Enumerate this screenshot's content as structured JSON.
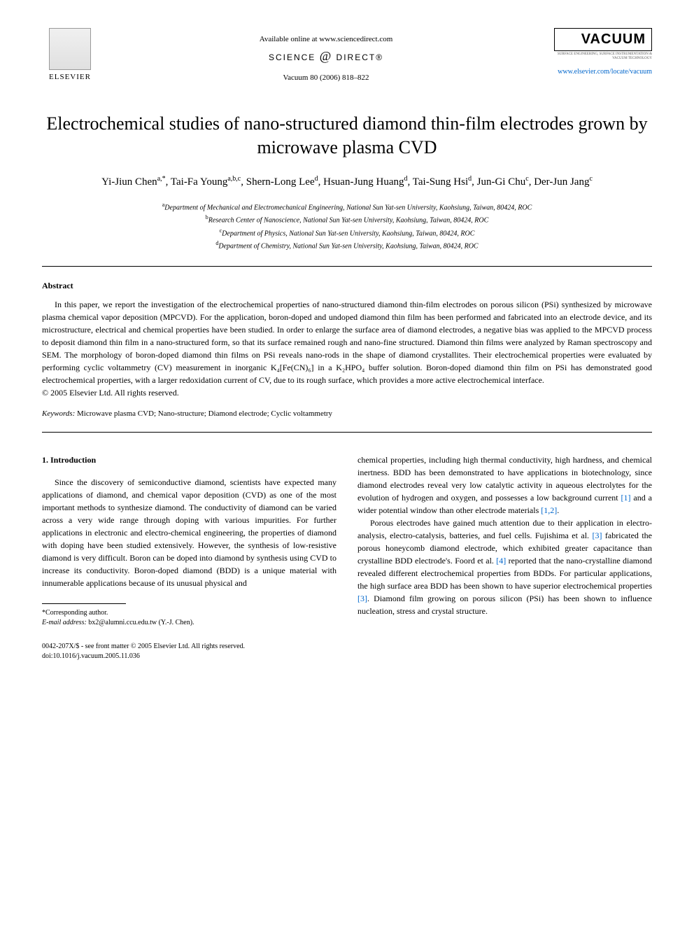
{
  "header": {
    "publisher": "ELSEVIER",
    "available_text": "Available online at www.sciencedirect.com",
    "science_direct": "SCIENCE",
    "science_direct2": "DIRECT®",
    "citation": "Vacuum 80 (2006) 818–822",
    "journal_name": "VACUUM",
    "journal_sub": "SURFACE ENGINEERING, SURFACE INSTRUMENTATION & VACUUM TECHNOLOGY",
    "journal_link": "www.elsevier.com/locate/vacuum"
  },
  "title": "Electrochemical studies of nano-structured diamond thin-film electrodes grown by microwave plasma CVD",
  "authors": [
    {
      "name": "Yi-Jiun Chen",
      "aff": "a,*"
    },
    {
      "name": "Tai-Fa Young",
      "aff": "a,b,c"
    },
    {
      "name": "Shern-Long Lee",
      "aff": "d"
    },
    {
      "name": "Hsuan-Jung Huang",
      "aff": "d"
    },
    {
      "name": "Tai-Sung Hsi",
      "aff": "d"
    },
    {
      "name": "Jun-Gi Chu",
      "aff": "c"
    },
    {
      "name": "Der-Jun Jang",
      "aff": "c"
    }
  ],
  "affiliations": [
    {
      "key": "a",
      "text": "Department of Mechanical and Electromechanical Engineering, National Sun Yat-sen University, Kaohsiung, Taiwan, 80424, ROC"
    },
    {
      "key": "b",
      "text": "Research Center of Nanoscience, National Sun Yat-sen University, Kaohsiung, Taiwan, 80424, ROC"
    },
    {
      "key": "c",
      "text": "Department of Physics, National Sun Yat-sen University, Kaohsiung, Taiwan, 80424, ROC"
    },
    {
      "key": "d",
      "text": "Department of Chemistry, National Sun Yat-sen University, Kaohsiung, Taiwan, 80424, ROC"
    }
  ],
  "abstract": {
    "heading": "Abstract",
    "text": "In this paper, we report the investigation of the electrochemical properties of nano-structured diamond thin-film electrodes on porous silicon (PSi) synthesized by microwave plasma chemical vapor deposition (MPCVD). For the application, boron-doped and undoped diamond thin film has been performed and fabricated into an electrode device, and its microstructure, electrical and chemical properties have been studied. In order to enlarge the surface area of diamond electrodes, a negative bias was applied to the MPCVD process to deposit diamond thin film in a nano-structured form, so that its surface remained rough and nano-fine structured. Diamond thin films were analyzed by Raman spectroscopy and SEM. The morphology of boron-doped diamond thin films on PSi reveals nano-rods in the shape of diamond crystallites. Their electrochemical properties were evaluated by performing cyclic voltammetry (CV) measurement in inorganic K₄[Fe(CN)₆] in a K₂HPO₄ buffer solution. Boron-doped diamond thin film on PSi has demonstrated good electrochemical properties, with a larger redoxidation current of CV, due to its rough surface, which provides a more active electrochemical interface.",
    "copyright": "© 2005 Elsevier Ltd. All rights reserved."
  },
  "keywords": {
    "label": "Keywords:",
    "text": "Microwave plasma CVD; Nano-structure; Diamond electrode; Cyclic voltammetry"
  },
  "body": {
    "section_heading": "1. Introduction",
    "col1_p1": "Since the discovery of semiconductive diamond, scientists have expected many applications of diamond, and chemical vapor deposition (CVD) as one of the most important methods to synthesize diamond. The conductivity of diamond can be varied across a very wide range through doping with various impurities. For further applications in electronic and electro-chemical engineering, the properties of diamond with doping have been studied extensively. However, the synthesis of low-resistive diamond is very difficult. Boron can be doped into diamond by synthesis using CVD to increase its conductivity. Boron-doped diamond (BDD) is a unique material with innumerable applications because of its unusual physical and",
    "col2_p1": "chemical properties, including high thermal conductivity, high hardness, and chemical inertness. BDD has been demonstrated to have applications in biotechnology, since diamond electrodes reveal very low catalytic activity in aqueous electrolytes for the evolution of hydrogen and oxygen, and possesses a low background current ",
    "col2_ref1": "[1]",
    "col2_p1b": " and a wider potential window than other electrode materials ",
    "col2_ref2": "[1,2]",
    "col2_p1c": ".",
    "col2_p2a": "Porous electrodes have gained much attention due to their application in electro-analysis, electro-catalysis, batteries, and fuel cells. Fujishima et al. ",
    "col2_ref3": "[3]",
    "col2_p2b": " fabricated the porous honeycomb diamond electrode, which exhibited greater capacitance than crystalline BDD electrode's. Foord et al. ",
    "col2_ref4": "[4]",
    "col2_p2c": " reported that the nano-crystalline diamond revealed different electrochemical properties from BDDs. For particular applications, the high surface area BDD has been shown to have superior electrochemical properties ",
    "col2_ref5": "[3]",
    "col2_p2d": ". Diamond film growing on porous silicon (PSi) has been shown to influence nucleation, stress and crystal structure."
  },
  "footnote": {
    "corresponding": "*Corresponding author.",
    "email_label": "E-mail address:",
    "email": "bx2@alumni.ccu.edu.tw (Y.-J. Chen)."
  },
  "footer": {
    "line1": "0042-207X/$ - see front matter © 2005 Elsevier Ltd. All rights reserved.",
    "line2": "doi:10.1016/j.vacuum.2005.11.036"
  }
}
